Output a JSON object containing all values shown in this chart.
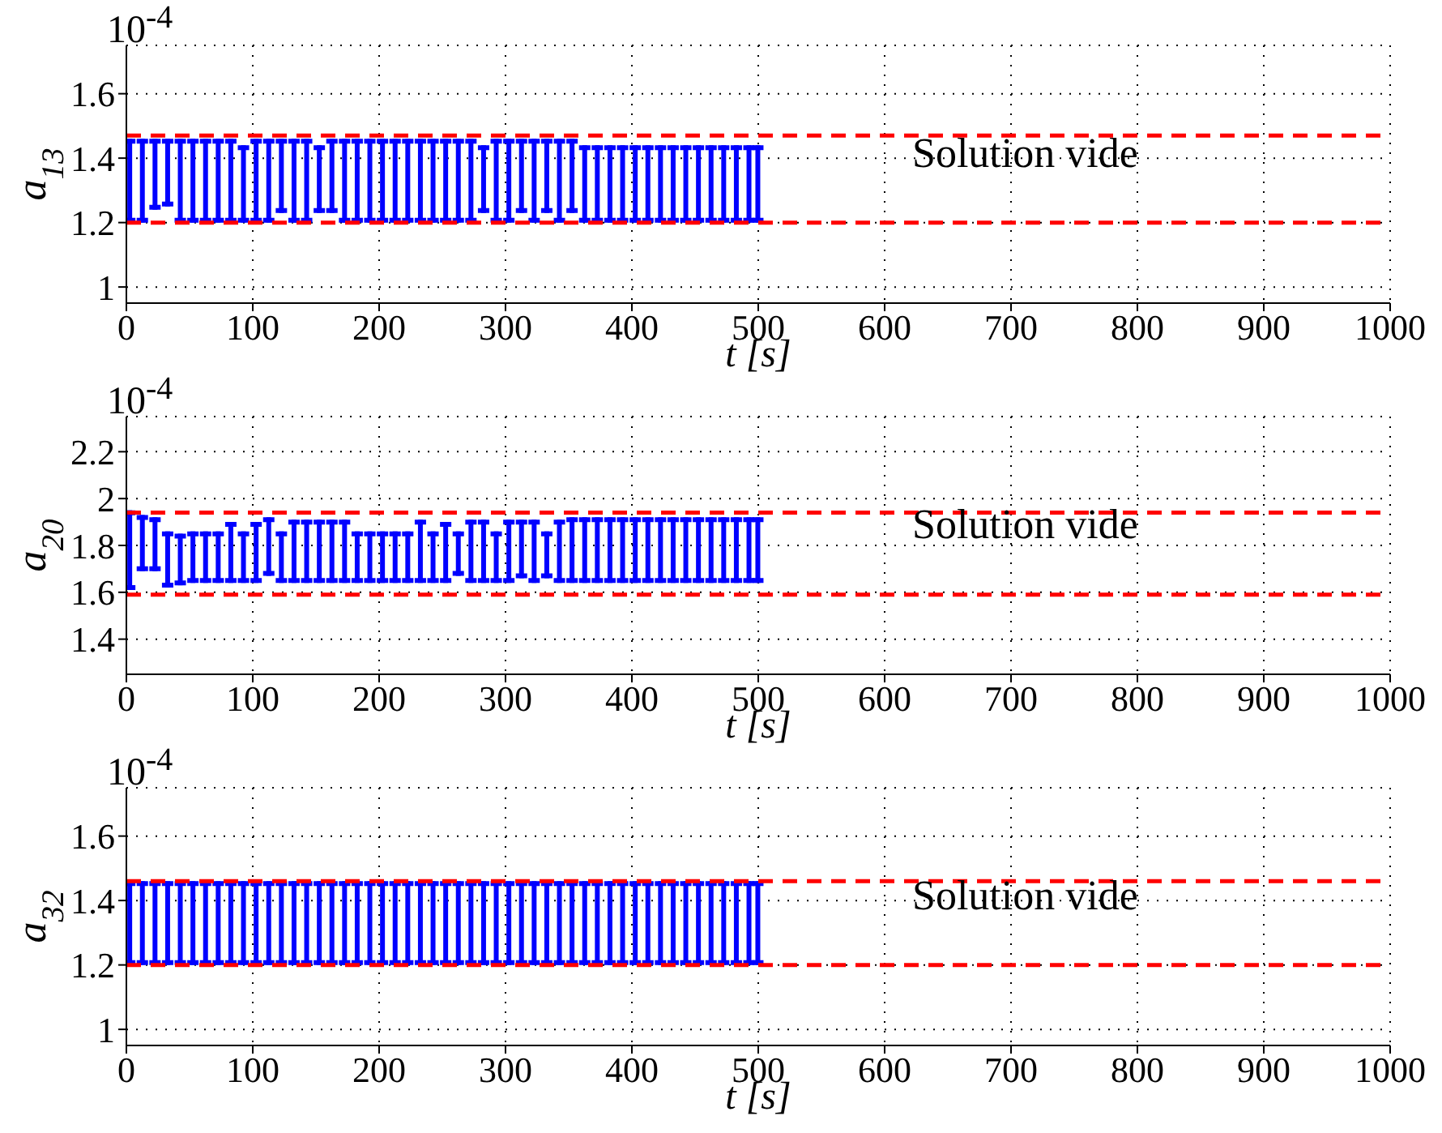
{
  "chart_data": [
    {
      "type": "bar",
      "ylabel": "a$_{13}$",
      "xlabel": "t [s]",
      "annotations": [
        "10$^{-4}$",
        "Solution vide"
      ],
      "x": [
        3,
        13,
        23,
        33,
        43,
        53,
        63,
        73,
        83,
        93,
        103,
        113,
        123,
        133,
        143,
        153,
        163,
        173,
        183,
        193,
        203,
        213,
        223,
        233,
        243,
        253,
        263,
        273,
        283,
        293,
        303,
        313,
        323,
        333,
        343,
        353,
        363,
        373,
        383,
        393,
        403,
        413,
        423,
        433,
        443,
        453,
        463,
        473,
        483,
        493,
        500
      ],
      "series": [
        {
          "color": "#0000ff",
          "base": [
            1.2,
            1.2,
            1.24,
            1.25,
            1.2,
            1.2,
            1.2,
            1.2,
            1.2,
            1.2,
            1.2,
            1.2,
            1.23,
            1.2,
            1.2,
            1.23,
            1.23,
            1.2,
            1.2,
            1.2,
            1.2,
            1.2,
            1.2,
            1.2,
            1.2,
            1.2,
            1.2,
            1.2,
            1.23,
            1.2,
            1.2,
            1.23,
            1.2,
            1.23,
            1.2,
            1.23,
            1.2,
            1.2,
            1.2,
            1.2,
            1.2,
            1.2,
            1.2,
            1.2,
            1.2,
            1.2,
            1.2,
            1.2,
            1.2,
            1.2,
            1.2
          ],
          "values": [
            0.26,
            0.26,
            0.22,
            0.21,
            0.26,
            0.26,
            0.26,
            0.26,
            0.26,
            0.24,
            0.26,
            0.26,
            0.23,
            0.26,
            0.26,
            0.21,
            0.23,
            0.26,
            0.26,
            0.26,
            0.26,
            0.26,
            0.26,
            0.26,
            0.26,
            0.26,
            0.26,
            0.26,
            0.21,
            0.26,
            0.26,
            0.23,
            0.26,
            0.23,
            0.26,
            0.23,
            0.24,
            0.24,
            0.24,
            0.24,
            0.24,
            0.24,
            0.24,
            0.24,
            0.24,
            0.24,
            0.24,
            0.24,
            0.24,
            0.24,
            0.24
          ]
        }
      ],
      "ref_lines": [
        {
          "axis": "y",
          "value": 1.47,
          "color": "#ff0000",
          "line_style": "dashed"
        },
        {
          "axis": "y",
          "value": 1.2,
          "color": "#ff0000",
          "line_style": "dashed"
        }
      ],
      "xlim": [
        0,
        1000
      ],
      "xticks": [
        0,
        100,
        200,
        300,
        400,
        500,
        600,
        700,
        800,
        900,
        1000
      ],
      "ylim": [
        0.95,
        1.75
      ],
      "yticks": [
        1,
        1.2,
        1.4,
        1.6
      ],
      "grid": true
    },
    {
      "type": "bar",
      "ylabel": "a$_{20}$",
      "xlabel": "t [s]",
      "annotations": [
        "10$^{-4}$",
        "Solution vide"
      ],
      "x": [
        3,
        13,
        23,
        33,
        43,
        53,
        63,
        73,
        83,
        93,
        103,
        113,
        123,
        133,
        143,
        153,
        163,
        173,
        183,
        193,
        203,
        213,
        223,
        233,
        243,
        253,
        263,
        273,
        283,
        293,
        303,
        313,
        323,
        333,
        343,
        353,
        363,
        373,
        383,
        393,
        403,
        413,
        423,
        433,
        443,
        453,
        463,
        473,
        483,
        493,
        500
      ],
      "series": [
        {
          "color": "#0000ff",
          "base": [
            1.61,
            1.69,
            1.69,
            1.62,
            1.63,
            1.64,
            1.64,
            1.64,
            1.64,
            1.64,
            1.64,
            1.67,
            1.64,
            1.64,
            1.64,
            1.64,
            1.64,
            1.64,
            1.64,
            1.64,
            1.64,
            1.64,
            1.64,
            1.64,
            1.64,
            1.64,
            1.67,
            1.64,
            1.64,
            1.64,
            1.64,
            1.66,
            1.64,
            1.66,
            1.64,
            1.64,
            1.64,
            1.64,
            1.64,
            1.64,
            1.64,
            1.64,
            1.64,
            1.64,
            1.64,
            1.64,
            1.64,
            1.64,
            1.64,
            1.64,
            1.64
          ],
          "values": [
            0.34,
            0.24,
            0.23,
            0.24,
            0.22,
            0.22,
            0.22,
            0.22,
            0.26,
            0.22,
            0.26,
            0.25,
            0.22,
            0.27,
            0.27,
            0.27,
            0.27,
            0.27,
            0.22,
            0.22,
            0.22,
            0.22,
            0.22,
            0.27,
            0.22,
            0.26,
            0.19,
            0.27,
            0.27,
            0.22,
            0.27,
            0.25,
            0.27,
            0.2,
            0.27,
            0.28,
            0.28,
            0.28,
            0.28,
            0.28,
            0.28,
            0.28,
            0.28,
            0.28,
            0.28,
            0.28,
            0.28,
            0.28,
            0.28,
            0.28,
            0.28
          ]
        }
      ],
      "ref_lines": [
        {
          "axis": "y",
          "value": 1.94,
          "color": "#ff0000",
          "line_style": "dashed"
        },
        {
          "axis": "y",
          "value": 1.59,
          "color": "#ff0000",
          "line_style": "dashed"
        }
      ],
      "xlim": [
        0,
        1000
      ],
      "xticks": [
        0,
        100,
        200,
        300,
        400,
        500,
        600,
        700,
        800,
        900,
        1000
      ],
      "ylim": [
        1.25,
        2.35
      ],
      "yticks": [
        1.4,
        1.6,
        1.8,
        2,
        2.2
      ],
      "grid": true
    },
    {
      "type": "bar",
      "ylabel": "a$_{32}$",
      "xlabel": "t [s]",
      "annotations": [
        "10$^{-4}$",
        "Solution vide"
      ],
      "x": [
        3,
        13,
        23,
        33,
        43,
        53,
        63,
        73,
        83,
        93,
        103,
        113,
        123,
        133,
        143,
        153,
        163,
        173,
        183,
        193,
        203,
        213,
        223,
        233,
        243,
        253,
        263,
        273,
        283,
        293,
        303,
        313,
        323,
        333,
        343,
        353,
        363,
        373,
        383,
        393,
        403,
        413,
        423,
        433,
        443,
        453,
        463,
        473,
        483,
        493,
        500
      ],
      "series": [
        {
          "color": "#0000ff",
          "base": [
            1.2,
            1.2,
            1.2,
            1.2,
            1.2,
            1.2,
            1.2,
            1.2,
            1.2,
            1.2,
            1.2,
            1.2,
            1.2,
            1.2,
            1.2,
            1.2,
            1.2,
            1.2,
            1.2,
            1.2,
            1.2,
            1.2,
            1.2,
            1.2,
            1.2,
            1.2,
            1.2,
            1.2,
            1.2,
            1.2,
            1.2,
            1.2,
            1.2,
            1.2,
            1.2,
            1.2,
            1.2,
            1.2,
            1.2,
            1.2,
            1.2,
            1.2,
            1.2,
            1.2,
            1.2,
            1.2,
            1.2,
            1.2,
            1.2,
            1.2,
            1.2
          ],
          "values": [
            0.26,
            0.26,
            0.26,
            0.26,
            0.26,
            0.26,
            0.26,
            0.26,
            0.26,
            0.26,
            0.26,
            0.26,
            0.26,
            0.26,
            0.26,
            0.26,
            0.26,
            0.26,
            0.26,
            0.26,
            0.26,
            0.26,
            0.26,
            0.26,
            0.26,
            0.26,
            0.26,
            0.26,
            0.26,
            0.26,
            0.26,
            0.26,
            0.26,
            0.26,
            0.26,
            0.26,
            0.26,
            0.26,
            0.26,
            0.26,
            0.26,
            0.26,
            0.26,
            0.26,
            0.26,
            0.26,
            0.26,
            0.26,
            0.26,
            0.26,
            0.26
          ]
        }
      ],
      "ref_lines": [
        {
          "axis": "y",
          "value": 1.46,
          "color": "#ff0000",
          "line_style": "dashed"
        },
        {
          "axis": "y",
          "value": 1.2,
          "color": "#ff0000",
          "line_style": "dashed"
        }
      ],
      "xlim": [
        0,
        1000
      ],
      "xticks": [
        0,
        100,
        200,
        300,
        400,
        500,
        600,
        700,
        800,
        900,
        1000
      ],
      "ylim": [
        0.95,
        1.75
      ],
      "yticks": [
        1,
        1.2,
        1.4,
        1.6
      ],
      "grid": true
    }
  ]
}
